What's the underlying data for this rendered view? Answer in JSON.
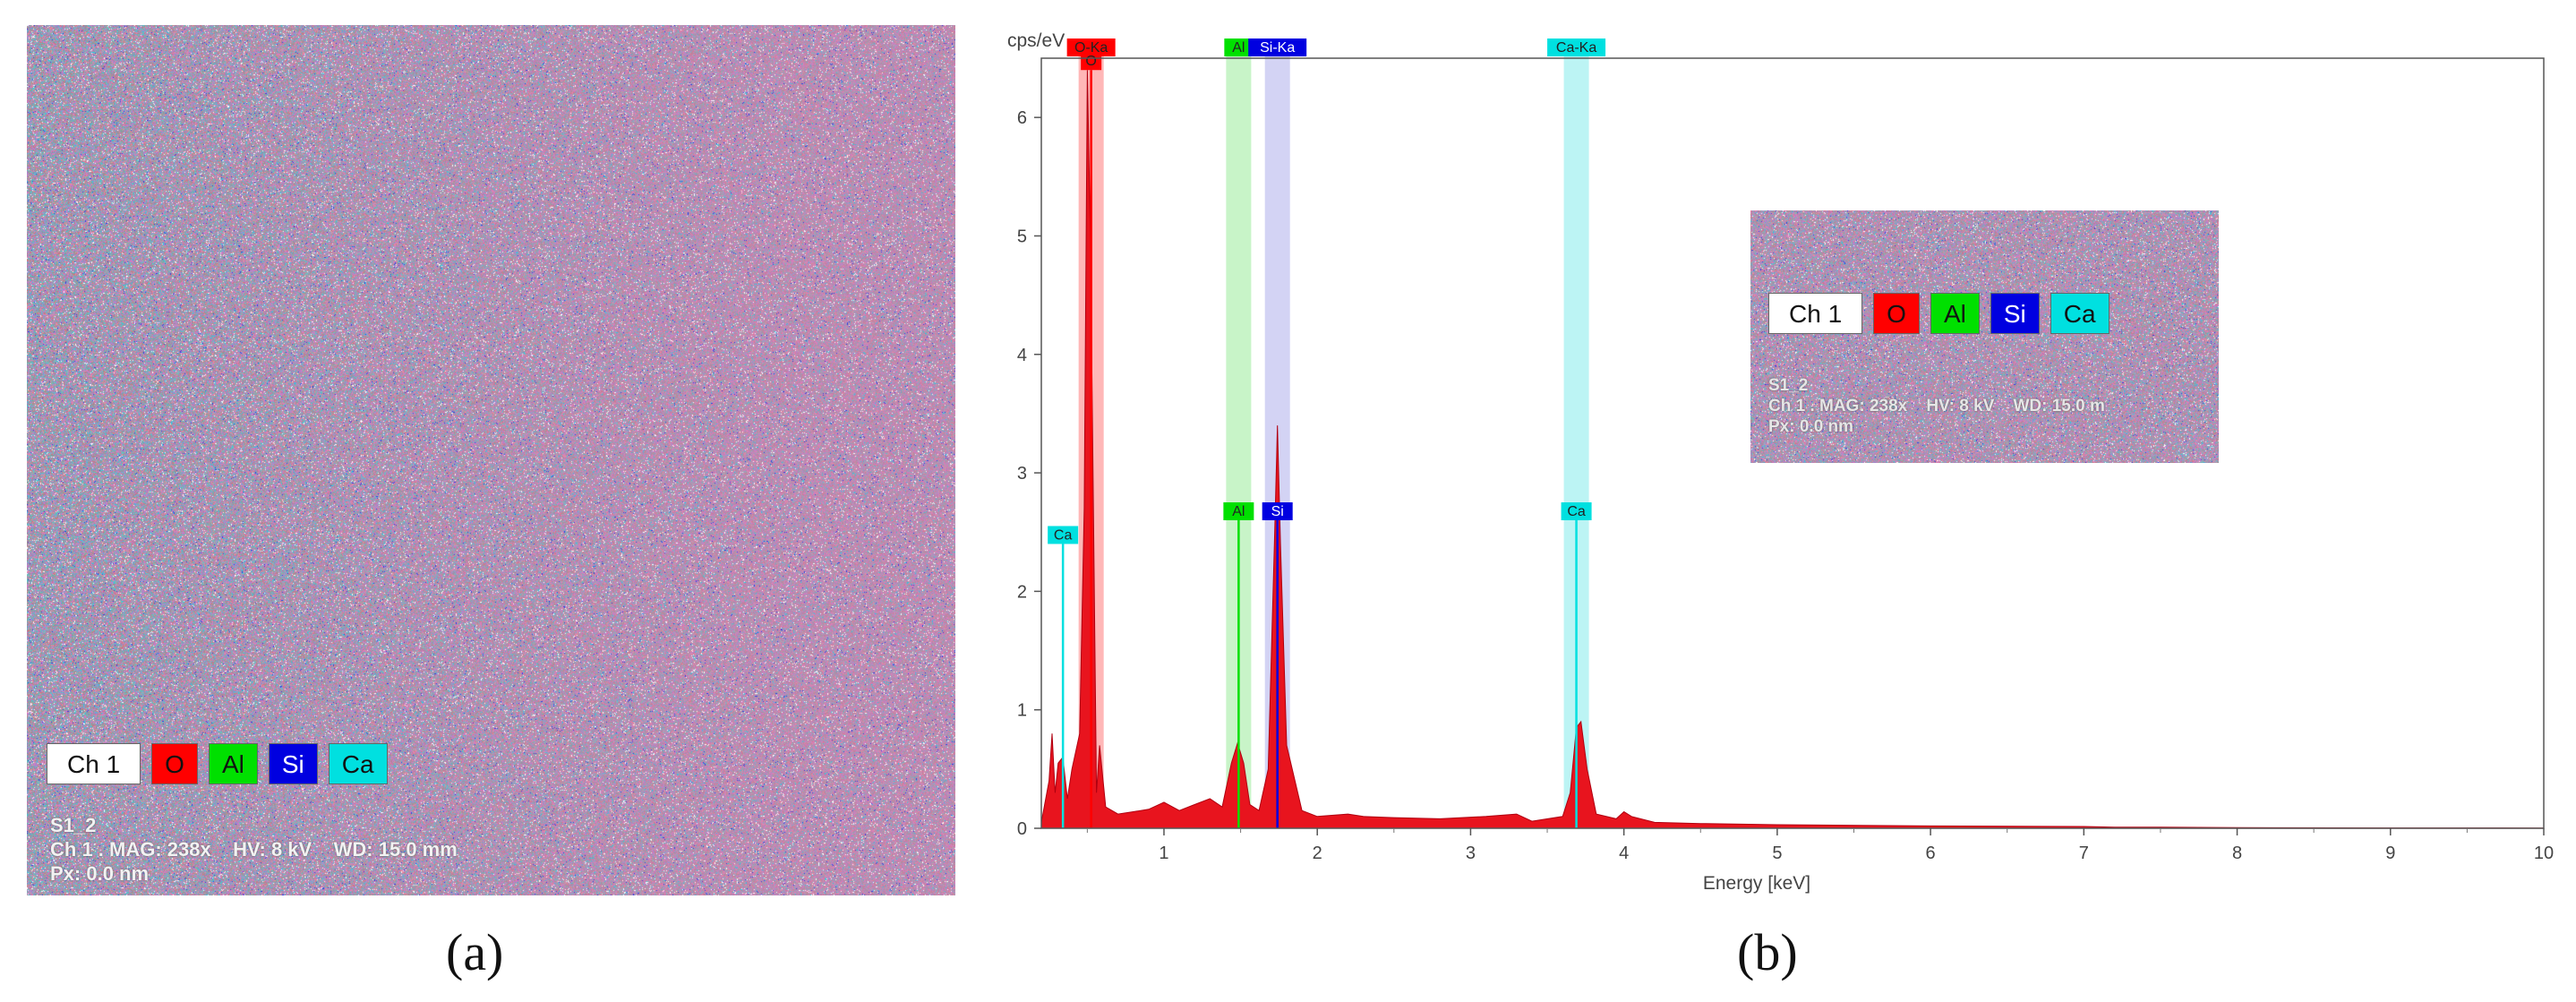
{
  "panel_a": {
    "legend": [
      "Ch 1",
      "O",
      "Al",
      "Si",
      "Ca"
    ],
    "info_lines": [
      "S1_2",
      "Ch 1 . MAG: 238x    HV: 8 kV    WD: 15.0 mm",
      "Px: 0.0 nm"
    ],
    "caption": "(a)"
  },
  "panel_b": {
    "caption": "(b)",
    "inset": {
      "legend": [
        "Ch 1",
        "O",
        "Al",
        "Si",
        "Ca"
      ],
      "info_lines": [
        "S1_2",
        "Ch 1 . MAG: 238x    HV: 8 kV    WD: 15.0 m",
        "Px: 0.0 nm"
      ]
    }
  },
  "colors": {
    "O": "#ff0000",
    "Al": "#00e000",
    "Si": "#0000e0",
    "Ca": "#00e0e0",
    "spectrum_fill": "#e8141e"
  },
  "chart_data": {
    "type": "area",
    "title": "",
    "ylabel": "cps/eV",
    "xlabel": "Energy [keV]",
    "xlim": [
      0.2,
      10
    ],
    "ylim": [
      0,
      6.5
    ],
    "xticks": [
      1,
      2,
      3,
      4,
      5,
      6,
      7,
      8,
      9,
      10
    ],
    "yticks": [
      0,
      1,
      2,
      3,
      4,
      5,
      6
    ],
    "grid": false,
    "series": [
      {
        "name": "",
        "x": [
          0.2,
          0.25,
          0.27,
          0.29,
          0.31,
          0.34,
          0.37,
          0.4,
          0.45,
          0.48,
          0.5,
          0.52,
          0.54,
          0.56,
          0.58,
          0.62,
          0.7,
          0.8,
          0.9,
          1.0,
          1.1,
          1.2,
          1.3,
          1.38,
          1.44,
          1.48,
          1.52,
          1.56,
          1.62,
          1.68,
          1.72,
          1.74,
          1.76,
          1.8,
          1.9,
          2.0,
          2.2,
          2.3,
          2.5,
          2.8,
          3.1,
          3.3,
          3.4,
          3.6,
          3.65,
          3.69,
          3.72,
          3.76,
          3.82,
          3.95,
          4.0,
          4.05,
          4.2,
          4.5,
          5.0,
          6.0,
          7.0,
          7.2,
          7.5,
          8.0,
          9.0,
          10.0
        ],
        "y": [
          0.05,
          0.4,
          0.8,
          0.3,
          0.55,
          0.6,
          0.25,
          0.5,
          0.8,
          2.7,
          6.4,
          5.0,
          2.7,
          0.3,
          0.7,
          0.18,
          0.12,
          0.14,
          0.16,
          0.22,
          0.15,
          0.2,
          0.25,
          0.18,
          0.55,
          0.72,
          0.55,
          0.2,
          0.15,
          0.5,
          2.4,
          3.4,
          2.4,
          0.7,
          0.15,
          0.1,
          0.12,
          0.1,
          0.09,
          0.08,
          0.1,
          0.12,
          0.06,
          0.1,
          0.3,
          0.85,
          0.9,
          0.5,
          0.12,
          0.08,
          0.14,
          0.1,
          0.05,
          0.04,
          0.03,
          0.02,
          0.015,
          0.01,
          0.01,
          0.005,
          0.003,
          0.002
        ]
      }
    ],
    "element_lines": [
      {
        "element": "O",
        "label_top": "O-Ka",
        "label_mid": "O",
        "energy": 0.525,
        "height": 6.4
      },
      {
        "element": "Al",
        "label_top": "Al",
        "label_mid": "Al",
        "energy": 1.487,
        "height": 2.6
      },
      {
        "element": "Si",
        "label_top": "Si-Ka",
        "label_mid": "Si",
        "energy": 1.74,
        "height": 2.6
      },
      {
        "element": "Ca",
        "label_top": "Ca-Ka",
        "label_mid": "Ca",
        "energy": 3.69,
        "height": 2.6
      },
      {
        "element": "Ca",
        "label_top": "",
        "label_mid": "Ca",
        "energy": 0.341,
        "height": 2.4
      }
    ]
  }
}
